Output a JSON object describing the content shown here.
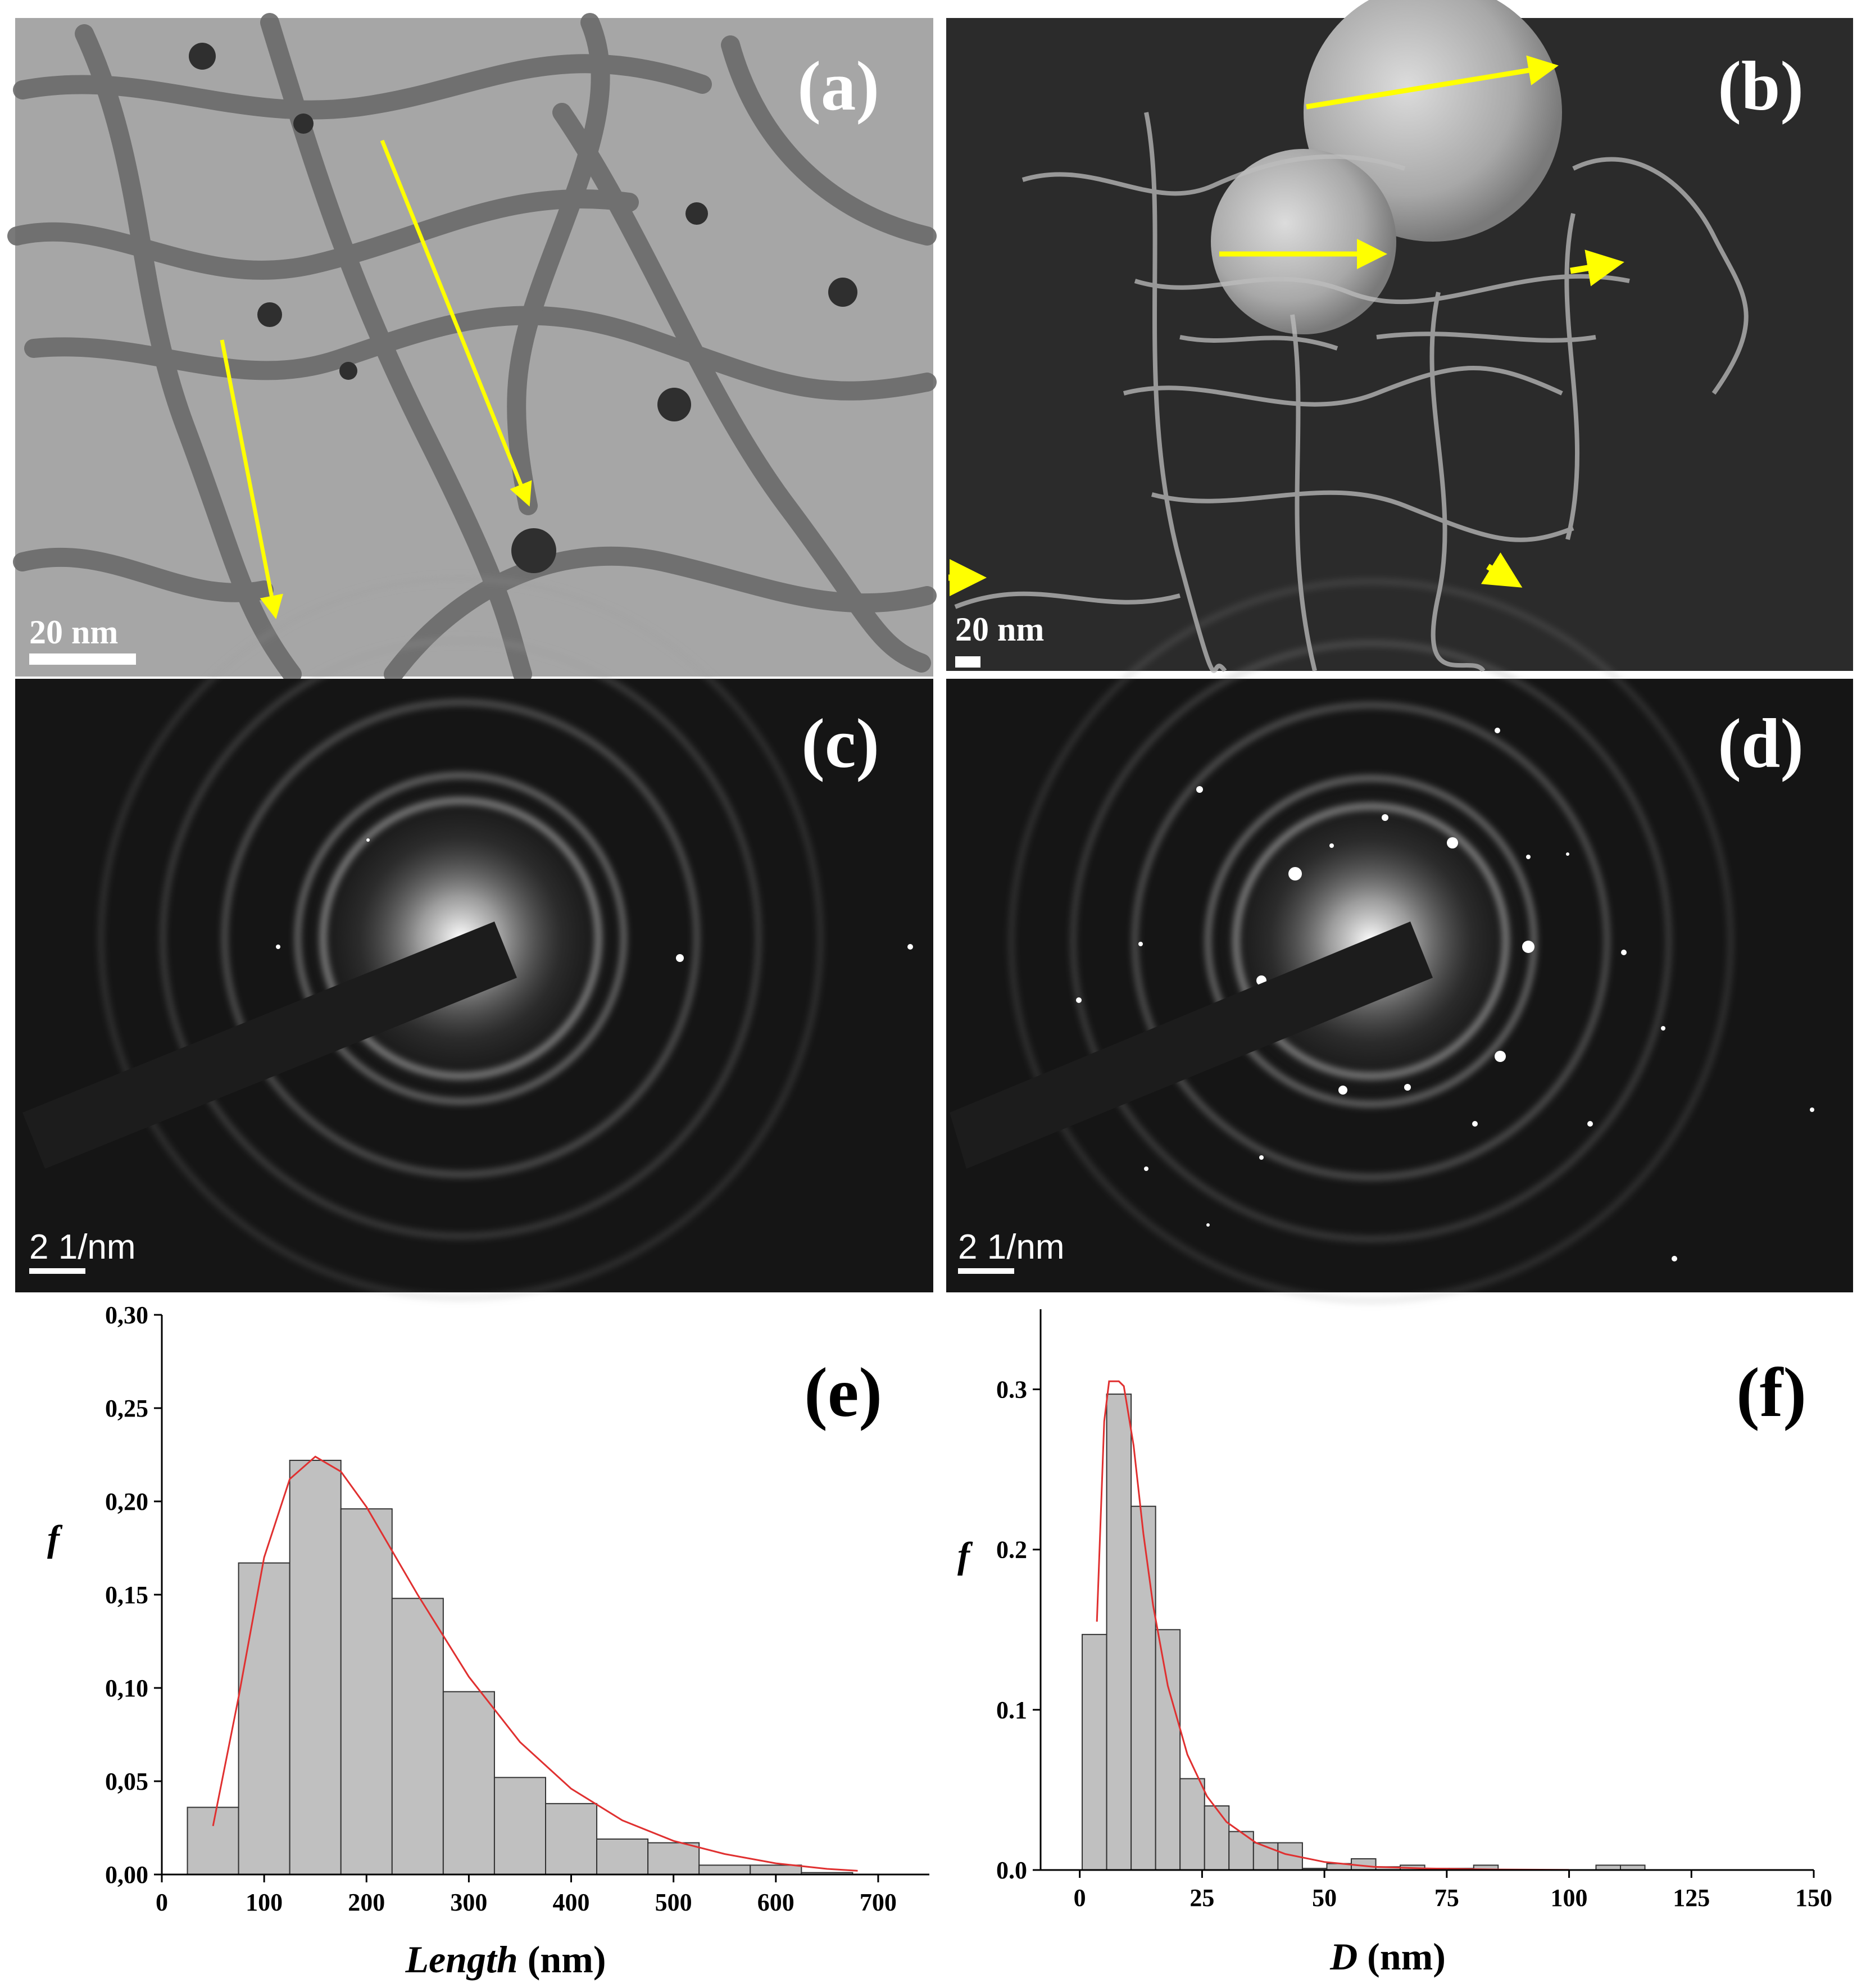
{
  "panels": {
    "a": {
      "label": "(a)",
      "scale": "20 nm"
    },
    "b": {
      "label": "(b)",
      "scale": "20 nm"
    },
    "c": {
      "label": "(c)",
      "scale": "2 1/nm"
    },
    "d": {
      "label": "(d)",
      "scale": "2 1/nm"
    },
    "e": {
      "label": "(e)"
    },
    "f": {
      "label": "(f)"
    }
  },
  "colors": {
    "arrow": "#ffff00",
    "bar_fill": "#c0c0c0",
    "fit_line": "#e03030",
    "tem_bg": "#a6a6a6",
    "sem_bg": "#2b2b2b",
    "saed_bg": "#151515"
  },
  "chart_data": [
    {
      "type": "bar",
      "panel": "e",
      "title": "",
      "xlabel": "Length (nm)",
      "xlabel_italic": "Length",
      "xlabel_unit": " (nm)",
      "ylabel": "f",
      "xlim": [
        0,
        750
      ],
      "ylim": [
        0,
        0.3
      ],
      "x_ticks": [
        0,
        100,
        200,
        300,
        400,
        500,
        600,
        700
      ],
      "x_tick_labels": [
        "0",
        "100",
        "200",
        "300",
        "400",
        "500",
        "600",
        "700"
      ],
      "y_ticks": [
        0,
        0.05,
        0.1,
        0.15,
        0.2,
        0.25,
        0.3
      ],
      "y_tick_labels": [
        "0,00",
        "0,05",
        "0,10",
        "0,15",
        "0,20",
        "0,25",
        "0,30"
      ],
      "bin_width": 50,
      "bins": [
        {
          "x": 50,
          "f": 0.036
        },
        {
          "x": 100,
          "f": 0.167
        },
        {
          "x": 150,
          "f": 0.222
        },
        {
          "x": 200,
          "f": 0.196
        },
        {
          "x": 250,
          "f": 0.148
        },
        {
          "x": 300,
          "f": 0.098
        },
        {
          "x": 350,
          "f": 0.052
        },
        {
          "x": 400,
          "f": 0.038
        },
        {
          "x": 450,
          "f": 0.019
        },
        {
          "x": 500,
          "f": 0.017
        },
        {
          "x": 550,
          "f": 0.005
        },
        {
          "x": 600,
          "f": 0.005
        },
        {
          "x": 650,
          "f": 0.001
        }
      ],
      "fit": {
        "type": "log-normal",
        "points": [
          [
            50,
            0.026
          ],
          [
            75,
            0.095
          ],
          [
            100,
            0.17
          ],
          [
            125,
            0.212
          ],
          [
            150,
            0.224
          ],
          [
            175,
            0.216
          ],
          [
            200,
            0.197
          ],
          [
            250,
            0.15
          ],
          [
            300,
            0.106
          ],
          [
            350,
            0.071
          ],
          [
            400,
            0.046
          ],
          [
            450,
            0.029
          ],
          [
            500,
            0.018
          ],
          [
            550,
            0.011
          ],
          [
            600,
            0.006
          ],
          [
            650,
            0.003
          ],
          [
            680,
            0.002
          ]
        ]
      },
      "grid": false
    },
    {
      "type": "bar",
      "panel": "f",
      "title": "",
      "xlabel": "D (nm)",
      "xlabel_italic": "D",
      "xlabel_unit": " (nm)",
      "ylabel": "f",
      "xlim": [
        -8,
        150
      ],
      "ylim": [
        0,
        0.35
      ],
      "x_ticks": [
        0,
        25,
        50,
        75,
        100,
        125,
        150
      ],
      "x_tick_labels": [
        "0",
        "25",
        "50",
        "75",
        "100",
        "125",
        "150"
      ],
      "y_ticks": [
        0,
        0.1,
        0.2,
        0.3
      ],
      "y_tick_labels": [
        "0.0",
        "0.1",
        "0.2",
        "0.3"
      ],
      "bin_width": 5,
      "bins": [
        {
          "x": 3,
          "f": 0.147
        },
        {
          "x": 8,
          "f": 0.297
        },
        {
          "x": 13,
          "f": 0.227
        },
        {
          "x": 18,
          "f": 0.15
        },
        {
          "x": 23,
          "f": 0.057
        },
        {
          "x": 28,
          "f": 0.04
        },
        {
          "x": 33,
          "f": 0.024
        },
        {
          "x": 38,
          "f": 0.017
        },
        {
          "x": 43,
          "f": 0.017
        },
        {
          "x": 48,
          "f": 0.001
        },
        {
          "x": 53,
          "f": 0.004
        },
        {
          "x": 58,
          "f": 0.007
        },
        {
          "x": 63,
          "f": 0.002
        },
        {
          "x": 68,
          "f": 0.003
        },
        {
          "x": 73,
          "f": 0.001
        },
        {
          "x": 78,
          "f": 0.001
        },
        {
          "x": 83,
          "f": 0.003
        },
        {
          "x": 108,
          "f": 0.003
        },
        {
          "x": 113,
          "f": 0.003
        }
      ],
      "fit": {
        "type": "log-normal",
        "points": [
          [
            3.5,
            0.155
          ],
          [
            5,
            0.28
          ],
          [
            6,
            0.305
          ],
          [
            8,
            0.305
          ],
          [
            9,
            0.302
          ],
          [
            11,
            0.265
          ],
          [
            13,
            0.21
          ],
          [
            15,
            0.165
          ],
          [
            18,
            0.115
          ],
          [
            22,
            0.072
          ],
          [
            26,
            0.046
          ],
          [
            30,
            0.03
          ],
          [
            36,
            0.017
          ],
          [
            42,
            0.01
          ],
          [
            50,
            0.005
          ],
          [
            60,
            0.002
          ],
          [
            70,
            0.001
          ],
          [
            85,
            0.0003
          ],
          [
            100,
            0.0001
          ]
        ]
      },
      "grid": false
    }
  ]
}
